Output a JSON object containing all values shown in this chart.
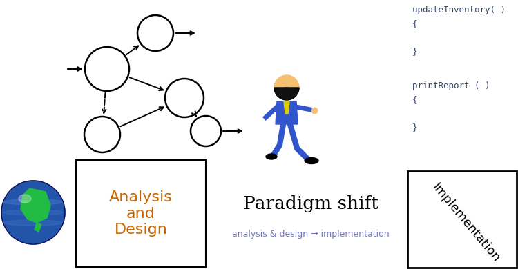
{
  "bg_color": "#ffffff",
  "analysis_text_color": "#cc6600",
  "subtitle_color": "#7777bb",
  "code_color": "#334466",
  "impl_text_color": "#000000",
  "analysis_label": "Analysis\nand\nDesign",
  "impl_label": "Implementation",
  "paradigm_title": "Paradigm shift",
  "paradigm_sub": "analysis & design → implementation",
  "code_lines": [
    "updateInventory( )",
    "{",
    "",
    "}",
    "",
    "printReport ( )",
    "{",
    "",
    "}"
  ],
  "figsize": [
    7.5,
    3.9
  ],
  "dpi": 100
}
